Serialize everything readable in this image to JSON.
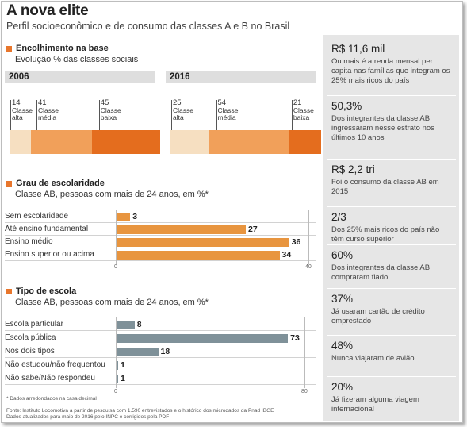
{
  "title": "A nova elite",
  "subtitle": "Perfil socioeconômico e de consumo das classes A e B no Brasil",
  "colors": {
    "accent": "#e8762c",
    "light": "#f6dfc1",
    "mid": "#f1a05a",
    "dark": "#e46d1e",
    "bar_orange": "#e8953f",
    "bar_grey": "#7f9199",
    "panel": "#e6e6e6"
  },
  "section1": {
    "heading": "Encolhimento na base",
    "subheading": "Evolução % das classes sociais",
    "years": [
      {
        "year": "2006",
        "segments": [
          {
            "value": 14,
            "value_label": "14",
            "label": "Classe\nalta"
          },
          {
            "value": 41,
            "value_label": "41",
            "label": "Classe\nmédia"
          },
          {
            "value": 45,
            "value_label": "45",
            "label": "Classe\nbaixa"
          }
        ]
      },
      {
        "year": "2016",
        "segments": [
          {
            "value": 25,
            "value_label": "25",
            "label": "Classe\nalta"
          },
          {
            "value": 54,
            "value_label": "54",
            "label": "Classe\nmédia"
          },
          {
            "value": 21,
            "value_label": "21",
            "label": "Classe\nbaixa"
          }
        ]
      }
    ]
  },
  "section2": {
    "heading": "Grau de escolaridade",
    "subheading": "Classe AB,  pessoas com mais de 24 anos, em %*"
  },
  "section3": {
    "heading": "Tipo de escola",
    "subheading": "Classe AB,  pessoas com mais de 24 anos, em %*"
  },
  "chart_data": [
    {
      "type": "bar",
      "title": "Encolhimento na base",
      "subtitle": "Evolução % das classes sociais",
      "stacked": true,
      "categories": [
        "2006",
        "2016"
      ],
      "series": [
        {
          "name": "Classe alta",
          "values": [
            14,
            25
          ]
        },
        {
          "name": "Classe média",
          "values": [
            41,
            54
          ]
        },
        {
          "name": "Classe baixa",
          "values": [
            45,
            21
          ]
        }
      ]
    },
    {
      "type": "bar",
      "orientation": "horizontal",
      "title": "Grau de escolaridade",
      "subtitle": "Classe AB,  pessoas com mais de 24 anos, em %*",
      "categories": [
        "Sem escolaridade",
        "Até ensino fundamental",
        "Ensino médio",
        "Ensino superior ou acima"
      ],
      "values": [
        3,
        27,
        36,
        34
      ],
      "xlim": [
        0,
        40
      ],
      "xticks": [
        "0",
        "40"
      ]
    },
    {
      "type": "bar",
      "orientation": "horizontal",
      "title": "Tipo de escola",
      "subtitle": "Classe AB,  pessoas com mais de 24 anos, em %*",
      "categories": [
        "Escola particular",
        "Escola pública",
        "Nos dois tipos",
        "Não estudou/não frequentou",
        "Não sabe/Não respondeu"
      ],
      "values": [
        8,
        73,
        18,
        1,
        1
      ],
      "xlim": [
        0,
        80
      ],
      "xticks": [
        "0",
        "80"
      ]
    }
  ],
  "footnote": "* Dados arredondados na casa decimal",
  "source_line1": "Fonte: Instituto Locomotiva a partir de pesquisa com 1.590 entrevistados e o  histórico dos microdados da Pnad IBGE",
  "source_line2": "Dados atualizados para maio de 2016 pelo INPC e corrigidos pela PDF",
  "facts": [
    {
      "big": "R$ 11,6 mil",
      "desc": "Ou mais é a renda mensal per capita nas famílias que integram os 25% mais ricos do país"
    },
    {
      "big": "50,3%",
      "desc": "Dos integrantes da classe AB ingressaram nesse estrato nos últimos 10 anos"
    },
    {
      "big": "R$ 2,2 tri",
      "desc": "Foi o consumo da classe AB em 2015"
    },
    {
      "big": "2/3",
      "desc": "Dos 25% mais ricos do país não têm curso superior"
    },
    {
      "big": "60%",
      "desc": "Dos integrantes da classe AB compraram fiado"
    },
    {
      "big": "37%",
      "desc": "Já usaram cartão de crédito emprestado"
    },
    {
      "big": "48%",
      "desc": "Nunca viajaram de avião"
    },
    {
      "big": "20%",
      "desc": "Já fizeram alguma viagem internacional"
    }
  ]
}
